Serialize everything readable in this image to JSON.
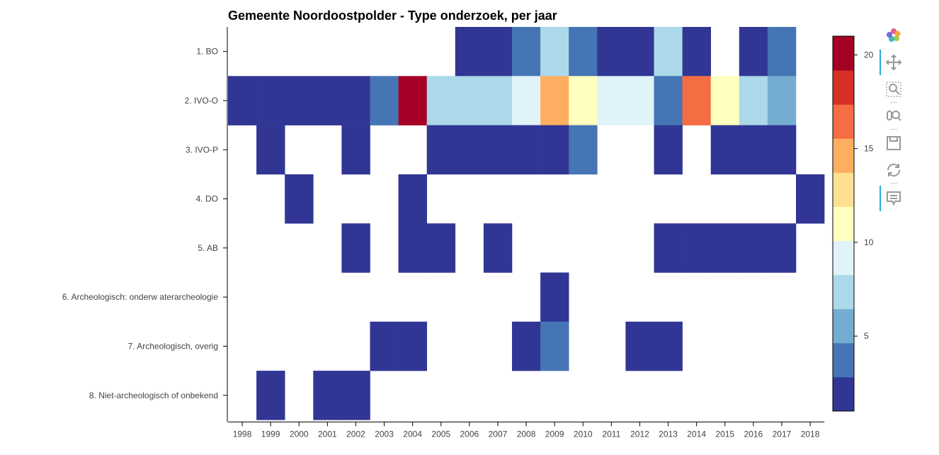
{
  "chart_data": {
    "type": "heatmap",
    "title": "Gemeente Noordoostpolder - Type onderzoek, per jaar",
    "xlabel": "",
    "ylabel": "",
    "x_categories": [
      "1998",
      "1999",
      "2000",
      "2001",
      "2002",
      "2003",
      "2004",
      "2005",
      "2006",
      "2007",
      "2008",
      "2009",
      "2010",
      "2011",
      "2012",
      "2013",
      "2014",
      "2015",
      "2016",
      "2017",
      "2018"
    ],
    "y_categories": [
      "1. BO",
      "2. IVO-O",
      "3. IVO-P",
      "4. DO",
      "5. AB",
      "6. Archeologisch: onderw aterarcheologie",
      "7. Archeologisch, overig",
      "8. Niet-archeologisch of onbekend"
    ],
    "values": [
      [
        null,
        null,
        null,
        null,
        null,
        null,
        null,
        null,
        2,
        2,
        3,
        8,
        4,
        2,
        1,
        8,
        1,
        null,
        1,
        4,
        null
      ],
      [
        1,
        1,
        2,
        2,
        2,
        4,
        21,
        7,
        7,
        8,
        10,
        15,
        11,
        10,
        9,
        4,
        16,
        11,
        7,
        6,
        null
      ],
      [
        null,
        2,
        null,
        null,
        1,
        null,
        null,
        1,
        2,
        1,
        1,
        1,
        3,
        null,
        null,
        1,
        null,
        1,
        1,
        1,
        null
      ],
      [
        null,
        null,
        1,
        null,
        null,
        null,
        2,
        null,
        null,
        null,
        null,
        null,
        null,
        null,
        null,
        null,
        null,
        null,
        null,
        null,
        1
      ],
      [
        null,
        null,
        null,
        null,
        1,
        null,
        2,
        2,
        null,
        1,
        null,
        null,
        null,
        null,
        null,
        1,
        2,
        1,
        2,
        1,
        null
      ],
      [
        null,
        null,
        null,
        null,
        null,
        null,
        null,
        null,
        null,
        null,
        null,
        1,
        null,
        null,
        null,
        null,
        null,
        null,
        null,
        null,
        null
      ],
      [
        null,
        null,
        null,
        null,
        null,
        2,
        1,
        null,
        null,
        null,
        1,
        3,
        null,
        null,
        1,
        2,
        null,
        null,
        null,
        null,
        null
      ],
      [
        null,
        1,
        null,
        1,
        1,
        null,
        null,
        null,
        null,
        null,
        null,
        null,
        null,
        null,
        null,
        null,
        null,
        null,
        null,
        null,
        null
      ]
    ],
    "colorbar": {
      "min": 1,
      "max": 21,
      "ticks": [
        5,
        10,
        15,
        20
      ],
      "palette": [
        "#313695",
        "#4575b4",
        "#74add1",
        "#abd9e9",
        "#e0f3f8",
        "#ffffbf",
        "#fee090",
        "#fdae61",
        "#f46d43",
        "#d73027",
        "#a50026"
      ]
    },
    "grid": false,
    "legend": "right"
  },
  "toolbar": {
    "items": [
      {
        "name": "bokeh-logo-icon",
        "active": false
      },
      {
        "name": "pan-icon",
        "active": true
      },
      {
        "name": "box-zoom-icon",
        "active": false
      },
      {
        "name": "wheel-zoom-icon",
        "active": false
      },
      {
        "name": "save-icon",
        "active": false
      },
      {
        "name": "reset-icon",
        "active": false
      },
      {
        "name": "hover-icon",
        "active": true
      }
    ]
  }
}
